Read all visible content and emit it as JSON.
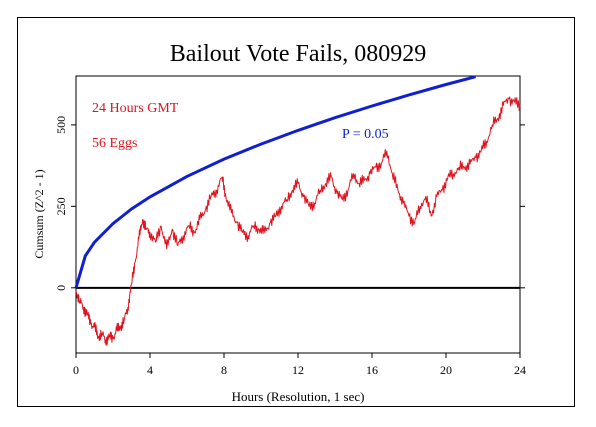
{
  "chart_data": {
    "type": "line",
    "title": "Bailout Vote Fails, 080929",
    "xlabel": "Hours (Resolution, 1 sec)",
    "ylabel": "Cumsum (Z^2 - 1)",
    "xlim": [
      0,
      24
    ],
    "ylim": [
      -200,
      650
    ],
    "x_ticks": [
      0,
      4,
      8,
      12,
      16,
      20,
      24
    ],
    "x_tick_labels": [
      "0",
      "4",
      "8",
      "12",
      "16",
      "20",
      "24"
    ],
    "y_ticks": [
      0,
      250,
      500
    ],
    "y_tick_labels": [
      "0",
      "250",
      "500"
    ],
    "annotations": [
      {
        "text": "24 Hours GMT",
        "color": "#e0141e"
      },
      {
        "text": "56 Eggs",
        "color": "#e0141e"
      },
      {
        "text": "P = 0.05",
        "color": "#1020d0"
      }
    ],
    "reference_line": {
      "y": 0,
      "color": "#000000"
    },
    "significance_curve": {
      "color": "#1020d0",
      "formula": "1.645 * sqrt(2 * t), t = seconds",
      "x": [
        0,
        0.5,
        1,
        2,
        3,
        4,
        6,
        8,
        10,
        12,
        14,
        16,
        18,
        20,
        21.6
      ],
      "values": [
        0,
        98,
        140,
        197,
        242,
        279,
        342,
        395,
        441,
        483,
        522,
        558,
        592,
        624,
        648
      ]
    },
    "series": [
      {
        "color": "#e0141e",
        "x": [
          0,
          0.2,
          0.4,
          0.6,
          0.8,
          1.0,
          1.2,
          1.4,
          1.6,
          1.8,
          2.0,
          2.2,
          2.4,
          2.6,
          2.8,
          3.0,
          3.2,
          3.4,
          3.6,
          3.8,
          4.0,
          4.3,
          4.6,
          4.9,
          5.2,
          5.5,
          5.8,
          6.1,
          6.4,
          6.7,
          7.0,
          7.3,
          7.6,
          7.9,
          8.1,
          8.4,
          8.7,
          9.0,
          9.3,
          9.6,
          9.9,
          10.2,
          10.5,
          10.8,
          11.1,
          11.4,
          11.7,
          12.0,
          12.3,
          12.6,
          12.9,
          13.2,
          13.5,
          13.8,
          14.1,
          14.4,
          14.7,
          15.0,
          15.3,
          15.6,
          15.9,
          16.2,
          16.5,
          16.8,
          17.1,
          17.4,
          17.7,
          18.0,
          18.3,
          18.6,
          18.9,
          19.2,
          19.5,
          19.8,
          20.1,
          20.4,
          20.7,
          21.0,
          21.3,
          21.6,
          21.9,
          22.2,
          22.5,
          22.8,
          23.1,
          23.4,
          23.7,
          24.0
        ],
        "values": [
          -10,
          -40,
          -60,
          -80,
          -110,
          -120,
          -150,
          -140,
          -160,
          -150,
          -155,
          -130,
          -120,
          -100,
          -60,
          10,
          80,
          150,
          210,
          180,
          170,
          140,
          190,
          120,
          180,
          130,
          160,
          190,
          170,
          210,
          240,
          280,
          300,
          340,
          280,
          230,
          200,
          170,
          160,
          190,
          180,
          170,
          200,
          220,
          250,
          270,
          300,
          320,
          280,
          250,
          260,
          300,
          320,
          340,
          290,
          270,
          300,
          350,
          320,
          330,
          350,
          370,
          380,
          420,
          350,
          300,
          260,
          220,
          200,
          250,
          280,
          220,
          280,
          300,
          340,
          350,
          370,
          370,
          380,
          400,
          420,
          450,
          500,
          520,
          560,
          580,
          570,
          560
        ]
      }
    ]
  }
}
